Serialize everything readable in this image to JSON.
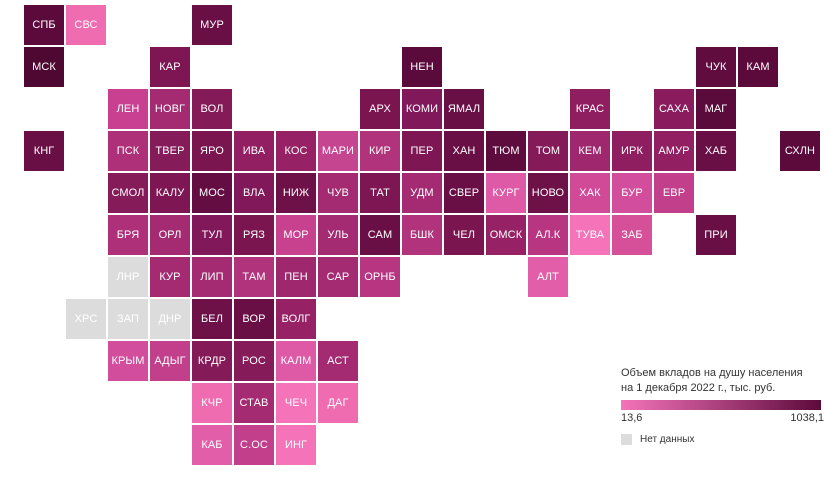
{
  "legend": {
    "title_line1": "Объем вкладов на душу населения",
    "title_line2": "на 1 декабря 2022 г., тыс. руб.",
    "min": "13,6",
    "max": "1038,1",
    "nodata": "Нет данных",
    "color_low": "#f473b9",
    "color_high": "#5c0a3c",
    "color_nodata": "#dcdcdc"
  },
  "tiles": [
    {
      "label": "СПБ",
      "row": 0,
      "col": 0,
      "color": "#5c0a3c"
    },
    {
      "label": "СВС",
      "row": 0,
      "col": 1,
      "color": "#f06cb1"
    },
    {
      "label": "МУР",
      "row": 0,
      "col": 4,
      "color": "#6a0f45"
    },
    {
      "label": "МСК",
      "row": 1,
      "col": 0,
      "color": "#4f0832"
    },
    {
      "label": "КАР",
      "row": 1,
      "col": 3,
      "color": "#7d1652"
    },
    {
      "label": "НЕН",
      "row": 1,
      "col": 9,
      "color": "#5a0a3b"
    },
    {
      "label": "ЧУК",
      "row": 1,
      "col": 16,
      "color": "#600c3f"
    },
    {
      "label": "КАМ",
      "row": 1,
      "col": 17,
      "color": "#5c0a3c"
    },
    {
      "label": "ЛЕН",
      "row": 2,
      "col": 2,
      "color": "#c8408f"
    },
    {
      "label": "НОВГ",
      "row": 2,
      "col": 3,
      "color": "#a42b72"
    },
    {
      "label": "ВОЛ",
      "row": 2,
      "col": 4,
      "color": "#841a58"
    },
    {
      "label": "АРХ",
      "row": 2,
      "col": 8,
      "color": "#7a1550"
    },
    {
      "label": "КОМИ",
      "row": 2,
      "col": 9,
      "color": "#80185a"
    },
    {
      "label": "ЯМАЛ",
      "row": 2,
      "col": 10,
      "color": "#6a0f45"
    },
    {
      "label": "КРАС",
      "row": 2,
      "col": 13,
      "color": "#8e1e60"
    },
    {
      "label": "САХА",
      "row": 2,
      "col": 15,
      "color": "#8a1c5d"
    },
    {
      "label": "МАГ",
      "row": 2,
      "col": 16,
      "color": "#5a0a3b"
    },
    {
      "label": "КНГ",
      "row": 3,
      "col": 0,
      "color": "#6a0f45"
    },
    {
      "label": "ПСК",
      "row": 3,
      "col": 2,
      "color": "#ae3079"
    },
    {
      "label": "ТВЕР",
      "row": 3,
      "col": 3,
      "color": "#861b5a"
    },
    {
      "label": "ЯРО",
      "row": 3,
      "col": 4,
      "color": "#7a1550"
    },
    {
      "label": "ИВА",
      "row": 3,
      "col": 5,
      "color": "#921f62"
    },
    {
      "label": "КОС",
      "row": 3,
      "col": 6,
      "color": "#962165"
    },
    {
      "label": "МАРИ",
      "row": 3,
      "col": 7,
      "color": "#c54590"
    },
    {
      "label": "КИР",
      "row": 3,
      "col": 8,
      "color": "#b0337b"
    },
    {
      "label": "ПЕР",
      "row": 3,
      "col": 9,
      "color": "#7d1652"
    },
    {
      "label": "ХАН",
      "row": 3,
      "col": 10,
      "color": "#6a0f45"
    },
    {
      "label": "ТЮМ",
      "row": 3,
      "col": 11,
      "color": "#5e0b3e"
    },
    {
      "label": "ТОМ",
      "row": 3,
      "col": 12,
      "color": "#841a58"
    },
    {
      "label": "КЕМ",
      "row": 3,
      "col": 13,
      "color": "#9e276d"
    },
    {
      "label": "ИРК",
      "row": 3,
      "col": 14,
      "color": "#8e1e60"
    },
    {
      "label": "АМУР",
      "row": 3,
      "col": 15,
      "color": "#921f62"
    },
    {
      "label": "ХАБ",
      "row": 3,
      "col": 16,
      "color": "#6a0f45"
    },
    {
      "label": "СХЛН",
      "row": 3,
      "col": 18,
      "color": "#5c0a3c"
    },
    {
      "label": "СМОЛ",
      "row": 4,
      "col": 2,
      "color": "#861b5a"
    },
    {
      "label": "КАЛУ",
      "row": 4,
      "col": 3,
      "color": "#7d1652"
    },
    {
      "label": "МОС",
      "row": 4,
      "col": 4,
      "color": "#640d42"
    },
    {
      "label": "ВЛА",
      "row": 4,
      "col": 5,
      "color": "#80185a"
    },
    {
      "label": "НИЖ",
      "row": 4,
      "col": 6,
      "color": "#6e1148"
    },
    {
      "label": "ЧУВ",
      "row": 4,
      "col": 7,
      "color": "#a42b72"
    },
    {
      "label": "ТАТ",
      "row": 4,
      "col": 8,
      "color": "#7d1652"
    },
    {
      "label": "УДМ",
      "row": 4,
      "col": 9,
      "color": "#a42b72"
    },
    {
      "label": "СВЕР",
      "row": 4,
      "col": 10,
      "color": "#6a0f45"
    },
    {
      "label": "КУРГ",
      "row": 4,
      "col": 11,
      "color": "#de5aa6"
    },
    {
      "label": "НОВО",
      "row": 4,
      "col": 12,
      "color": "#6e1148"
    },
    {
      "label": "ХАК",
      "row": 4,
      "col": 13,
      "color": "#d04a98"
    },
    {
      "label": "БУР",
      "row": 4,
      "col": 14,
      "color": "#d24d9b"
    },
    {
      "label": "ЕВР",
      "row": 4,
      "col": 15,
      "color": "#c23f8c"
    },
    {
      "label": "БРЯ",
      "row": 5,
      "col": 2,
      "color": "#ae3079"
    },
    {
      "label": "ОРЛ",
      "row": 5,
      "col": 3,
      "color": "#a42b72"
    },
    {
      "label": "ТУЛ",
      "row": 5,
      "col": 4,
      "color": "#80185a"
    },
    {
      "label": "РЯЗ",
      "row": 5,
      "col": 5,
      "color": "#7a1550"
    },
    {
      "label": "МОР",
      "row": 5,
      "col": 6,
      "color": "#c8418f"
    },
    {
      "label": "УЛЬ",
      "row": 5,
      "col": 7,
      "color": "#a42b72"
    },
    {
      "label": "САМ",
      "row": 5,
      "col": 8,
      "color": "#6a0f45"
    },
    {
      "label": "БШК",
      "row": 5,
      "col": 9,
      "color": "#b0337b"
    },
    {
      "label": "ЧЕЛ",
      "row": 5,
      "col": 10,
      "color": "#7a1550"
    },
    {
      "label": "ОМСК",
      "row": 5,
      "col": 11,
      "color": "#962165"
    },
    {
      "label": "АЛ.К",
      "row": 5,
      "col": 12,
      "color": "#b83681"
    },
    {
      "label": "ТУВА",
      "row": 5,
      "col": 13,
      "color": "#f473b9"
    },
    {
      "label": "ЗАБ",
      "row": 5,
      "col": 14,
      "color": "#d65099"
    },
    {
      "label": "ПРИ",
      "row": 5,
      "col": 16,
      "color": "#6a0f45"
    },
    {
      "label": "ЛНР",
      "row": 6,
      "col": 2,
      "color": "#dcdcdc",
      "nodata": true
    },
    {
      "label": "КУР",
      "row": 6,
      "col": 3,
      "color": "#a42b72"
    },
    {
      "label": "ЛИП",
      "row": 6,
      "col": 4,
      "color": "#a42b72"
    },
    {
      "label": "ТАМ",
      "row": 6,
      "col": 5,
      "color": "#b0337b"
    },
    {
      "label": "ПЕН",
      "row": 6,
      "col": 6,
      "color": "#9e276d"
    },
    {
      "label": "САР",
      "row": 6,
      "col": 7,
      "color": "#a42b72"
    },
    {
      "label": "ОРНБ",
      "row": 6,
      "col": 8,
      "color": "#b83681"
    },
    {
      "label": "АЛТ",
      "row": 6,
      "col": 12,
      "color": "#e35ea9"
    },
    {
      "label": "ХРС",
      "row": 7,
      "col": 1,
      "color": "#dcdcdc",
      "nodata": true
    },
    {
      "label": "ЗАП",
      "row": 7,
      "col": 2,
      "color": "#dcdcdc",
      "nodata": true
    },
    {
      "label": "ДНР",
      "row": 7,
      "col": 3,
      "color": "#dcdcdc",
      "nodata": true
    },
    {
      "label": "БЕЛ",
      "row": 7,
      "col": 4,
      "color": "#6e1148"
    },
    {
      "label": "ВОР",
      "row": 7,
      "col": 5,
      "color": "#6a0f45"
    },
    {
      "label": "ВОЛГ",
      "row": 7,
      "col": 6,
      "color": "#962165"
    },
    {
      "label": "КРЫМ",
      "row": 8,
      "col": 2,
      "color": "#d24d9b"
    },
    {
      "label": "АДЫГ",
      "row": 8,
      "col": 3,
      "color": "#c23f8c"
    },
    {
      "label": "КРДР",
      "row": 8,
      "col": 4,
      "color": "#841a58"
    },
    {
      "label": "РОС",
      "row": 8,
      "col": 5,
      "color": "#861b5a"
    },
    {
      "label": "КАЛМ",
      "row": 8,
      "col": 6,
      "color": "#de5aa6"
    },
    {
      "label": "АСТ",
      "row": 8,
      "col": 7,
      "color": "#a42b72"
    },
    {
      "label": "КЧР",
      "row": 9,
      "col": 4,
      "color": "#f06cb1"
    },
    {
      "label": "СТАВ",
      "row": 9,
      "col": 5,
      "color": "#a42b72"
    },
    {
      "label": "ЧЕЧ",
      "row": 9,
      "col": 6,
      "color": "#f473b9"
    },
    {
      "label": "ДАГ",
      "row": 9,
      "col": 7,
      "color": "#f06cb1"
    },
    {
      "label": "КАБ",
      "row": 10,
      "col": 4,
      "color": "#e35ea9"
    },
    {
      "label": "С.ОС",
      "row": 10,
      "col": 5,
      "color": "#c23f8c"
    },
    {
      "label": "ИНГ",
      "row": 10,
      "col": 6,
      "color": "#f473b9"
    }
  ]
}
